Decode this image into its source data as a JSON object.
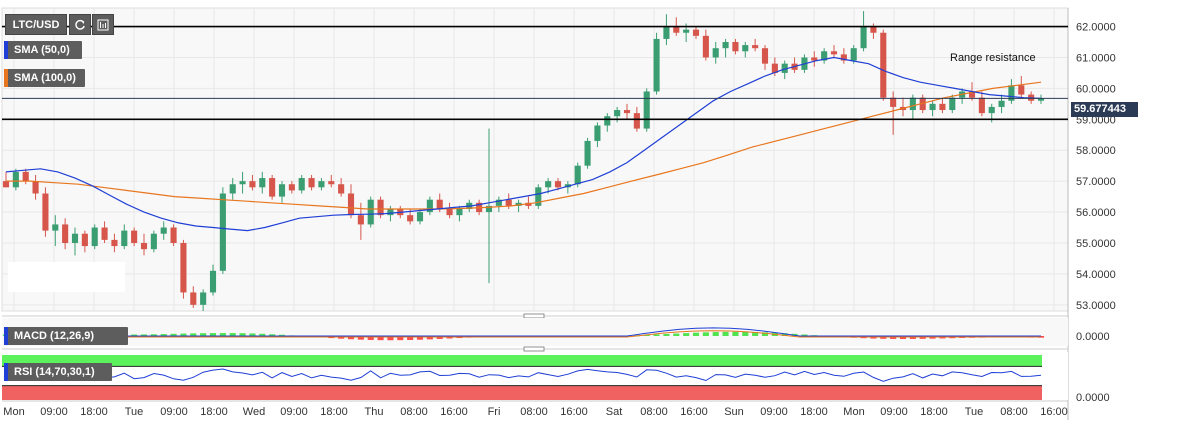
{
  "toolbar": {
    "symbol": "LTC/USD",
    "refresh_icon": "refresh-icon",
    "chart_icon": "chart-type-icon"
  },
  "indicators": {
    "sma50": "SMA (50,0)",
    "sma100": "SMA (100,0)",
    "macd": "MACD (12,26,9)",
    "rsi": "RSI (14,70,30,1)"
  },
  "annotation": "Range resistance",
  "current_price": "59.677443",
  "colors": {
    "up": "#3b9e72",
    "down": "#d6564b",
    "sma50": "#1f3fd6",
    "sma100": "#e8761e",
    "flag": "#2b3a55",
    "macd_green": "#32e132",
    "macd_red": "#ff2b2b",
    "rsi_over": "#5cf25c",
    "rsi_under": "#f06262",
    "rsi_line": "#1f3fd6"
  },
  "chart_data": {
    "type": "candlestick",
    "price_axis_ticks": [
      "62.0000",
      "61.0000",
      "60.0000",
      "59.0000",
      "58.0000",
      "57.0000",
      "56.0000",
      "55.0000",
      "54.0000",
      "53.0000"
    ],
    "ylim": [
      52.8,
      62.6
    ],
    "horizontal_levels": [
      62.0,
      59.0
    ],
    "current_price": 59.677443,
    "time_labels": [
      "Mon",
      "09:00",
      "18:00",
      "Tue",
      "09:00",
      "18:00",
      "Wed",
      "09:00",
      "18:00",
      "Thu",
      "08:00",
      "16:00",
      "Fri",
      "08:00",
      "16:00",
      "Sat",
      "08:00",
      "16:00",
      "Sun",
      "09:00",
      "18:00",
      "Mon",
      "09:00",
      "18:00",
      "Tue",
      "08:00",
      "16:00"
    ],
    "macd_tick": "0.0000",
    "rsi_tick": "0.0000",
    "candles": [
      [
        57.0,
        57.3,
        56.8,
        56.8
      ],
      [
        56.8,
        57.4,
        56.7,
        57.3
      ],
      [
        57.3,
        57.4,
        56.9,
        57.0
      ],
      [
        57.0,
        57.2,
        56.4,
        56.6
      ],
      [
        56.6,
        56.8,
        55.2,
        55.4
      ],
      [
        55.4,
        55.9,
        54.9,
        55.6
      ],
      [
        55.6,
        55.8,
        54.8,
        55.0
      ],
      [
        55.0,
        55.5,
        54.6,
        55.3
      ],
      [
        55.3,
        55.4,
        54.7,
        54.9
      ],
      [
        54.9,
        55.6,
        54.8,
        55.5
      ],
      [
        55.5,
        55.7,
        55.0,
        55.1
      ],
      [
        55.1,
        55.3,
        54.7,
        54.9
      ],
      [
        54.9,
        55.6,
        54.8,
        55.4
      ],
      [
        55.4,
        55.5,
        54.9,
        55.0
      ],
      [
        55.0,
        55.3,
        54.6,
        54.8
      ],
      [
        54.8,
        55.4,
        54.7,
        55.3
      ],
      [
        55.3,
        55.7,
        55.1,
        55.5
      ],
      [
        55.5,
        55.6,
        54.9,
        55.0
      ],
      [
        55.0,
        55.1,
        53.2,
        53.4
      ],
      [
        53.4,
        53.6,
        52.9,
        53.0
      ],
      [
        53.0,
        53.5,
        52.8,
        53.4
      ],
      [
        53.4,
        54.3,
        53.3,
        54.1
      ],
      [
        54.1,
        56.8,
        54.0,
        56.6
      ],
      [
        56.6,
        57.1,
        56.4,
        56.9
      ],
      [
        56.9,
        57.3,
        56.6,
        57.0
      ],
      [
        57.0,
        57.2,
        56.7,
        56.8
      ],
      [
        56.8,
        57.3,
        56.6,
        57.1
      ],
      [
        57.1,
        57.2,
        56.4,
        56.5
      ],
      [
        56.5,
        57.0,
        56.3,
        56.9
      ],
      [
        56.9,
        57.0,
        56.6,
        56.7
      ],
      [
        56.7,
        57.2,
        56.6,
        57.1
      ],
      [
        57.1,
        57.2,
        56.7,
        56.8
      ],
      [
        56.8,
        57.1,
        56.7,
        57.0
      ],
      [
        57.0,
        57.2,
        56.8,
        56.9
      ],
      [
        56.9,
        57.1,
        56.5,
        56.6
      ],
      [
        56.6,
        56.9,
        55.8,
        55.9
      ],
      [
        55.9,
        56.3,
        55.1,
        55.6
      ],
      [
        55.6,
        56.5,
        55.5,
        56.4
      ],
      [
        56.4,
        56.5,
        55.8,
        55.9
      ],
      [
        55.9,
        56.2,
        55.7,
        56.1
      ],
      [
        56.1,
        56.2,
        55.8,
        55.9
      ],
      [
        55.9,
        56.1,
        55.6,
        55.7
      ],
      [
        55.7,
        56.1,
        55.6,
        56.0
      ],
      [
        56.0,
        56.5,
        55.9,
        56.4
      ],
      [
        56.4,
        56.6,
        56.0,
        56.1
      ],
      [
        56.1,
        56.3,
        55.8,
        55.9
      ],
      [
        55.9,
        56.2,
        55.7,
        56.1
      ],
      [
        56.1,
        56.4,
        56.0,
        56.3
      ],
      [
        56.3,
        56.4,
        55.9,
        56.0
      ],
      [
        56.0,
        58.7,
        53.7,
        56.2
      ],
      [
        56.2,
        56.5,
        56.0,
        56.4
      ],
      [
        56.4,
        56.6,
        56.1,
        56.2
      ],
      [
        56.2,
        56.4,
        56.0,
        56.3
      ],
      [
        56.3,
        56.5,
        56.1,
        56.2
      ],
      [
        56.2,
        56.9,
        56.1,
        56.8
      ],
      [
        56.8,
        57.1,
        56.6,
        57.0
      ],
      [
        57.0,
        57.1,
        56.7,
        56.8
      ],
      [
        56.8,
        57.0,
        56.6,
        56.9
      ],
      [
        56.9,
        57.6,
        56.8,
        57.5
      ],
      [
        57.5,
        58.4,
        57.4,
        58.3
      ],
      [
        58.3,
        58.9,
        58.1,
        58.8
      ],
      [
        58.8,
        59.2,
        58.6,
        59.1
      ],
      [
        59.1,
        59.4,
        58.9,
        59.3
      ],
      [
        59.3,
        59.5,
        59.0,
        59.2
      ],
      [
        59.2,
        59.4,
        58.6,
        58.7
      ],
      [
        58.7,
        60.0,
        58.6,
        59.9
      ],
      [
        59.9,
        61.8,
        59.8,
        61.6
      ],
      [
        61.6,
        62.4,
        61.4,
        62.0
      ],
      [
        62.0,
        62.3,
        61.7,
        61.8
      ],
      [
        61.8,
        62.1,
        61.5,
        61.9
      ],
      [
        61.9,
        62.0,
        61.6,
        61.7
      ],
      [
        61.7,
        61.9,
        60.9,
        61.0
      ],
      [
        61.0,
        61.5,
        60.8,
        61.3
      ],
      [
        61.3,
        61.6,
        61.0,
        61.5
      ],
      [
        61.5,
        61.6,
        61.1,
        61.2
      ],
      [
        61.2,
        61.5,
        61.0,
        61.4
      ],
      [
        61.4,
        61.6,
        61.2,
        61.3
      ],
      [
        61.3,
        61.4,
        60.6,
        60.8
      ],
      [
        60.8,
        61.0,
        60.4,
        60.5
      ],
      [
        60.5,
        60.9,
        60.3,
        60.8
      ],
      [
        60.8,
        61.0,
        60.5,
        60.6
      ],
      [
        60.6,
        61.1,
        60.5,
        61.0
      ],
      [
        61.0,
        61.2,
        60.7,
        60.9
      ],
      [
        60.9,
        61.3,
        60.8,
        61.2
      ],
      [
        61.2,
        61.4,
        61.0,
        61.1
      ],
      [
        61.1,
        61.3,
        60.8,
        60.9
      ],
      [
        60.9,
        61.4,
        60.8,
        61.3
      ],
      [
        61.3,
        62.5,
        61.2,
        62.0
      ],
      [
        62.0,
        62.1,
        61.6,
        61.8
      ],
      [
        61.8,
        61.9,
        59.6,
        59.7
      ],
      [
        59.7,
        59.9,
        58.5,
        59.4
      ],
      [
        59.4,
        59.7,
        59.1,
        59.3
      ],
      [
        59.3,
        59.8,
        59.0,
        59.7
      ],
      [
        59.7,
        59.8,
        59.2,
        59.3
      ],
      [
        59.3,
        59.6,
        59.1,
        59.5
      ],
      [
        59.5,
        59.7,
        59.2,
        59.3
      ],
      [
        59.3,
        59.8,
        59.2,
        59.7
      ],
      [
        59.7,
        60.0,
        59.5,
        59.9
      ],
      [
        59.9,
        60.2,
        59.6,
        59.7
      ],
      [
        59.7,
        59.9,
        59.1,
        59.2
      ],
      [
        59.2,
        59.5,
        58.9,
        59.4
      ],
      [
        59.4,
        59.8,
        59.2,
        59.6
      ],
      [
        59.6,
        60.3,
        59.5,
        60.1
      ],
      [
        60.1,
        60.4,
        59.7,
        59.8
      ],
      [
        59.8,
        59.9,
        59.5,
        59.6
      ],
      [
        59.6,
        59.8,
        59.5,
        59.68
      ]
    ],
    "sma50": [
      57.3,
      57.35,
      57.4,
      57.3,
      57.1,
      56.85,
      56.55,
      56.25,
      56.0,
      55.8,
      55.65,
      55.55,
      55.5,
      55.45,
      55.4,
      55.5,
      55.65,
      55.8,
      55.85,
      55.9,
      55.92,
      55.93,
      55.95,
      56.0,
      56.05,
      56.1,
      56.15,
      56.2,
      56.3,
      56.4,
      56.5,
      56.6,
      56.75,
      56.9,
      57.05,
      57.3,
      57.6,
      58.0,
      58.4,
      58.8,
      59.2,
      59.6,
      59.9,
      60.15,
      60.4,
      60.6,
      60.75,
      60.9,
      61.0,
      60.9,
      60.8,
      60.55,
      60.35,
      60.2,
      60.1,
      60.0,
      59.9,
      59.8,
      59.75,
      59.7,
      59.68
    ],
    "sma100": [
      57.0,
      57.0,
      56.95,
      56.9,
      56.8,
      56.7,
      56.6,
      56.5,
      56.45,
      56.4,
      56.35,
      56.3,
      56.25,
      56.2,
      56.15,
      56.1,
      56.1,
      56.1,
      56.1,
      56.12,
      56.15,
      56.2,
      56.3,
      56.45,
      56.6,
      56.8,
      57.0,
      57.2,
      57.4,
      57.6,
      57.85,
      58.1,
      58.3,
      58.5,
      58.7,
      58.9,
      59.1,
      59.3,
      59.5,
      59.7,
      59.85,
      60.0,
      60.1,
      60.2
    ],
    "rsi_range": [
      0,
      100
    ],
    "rsi_levels": [
      70,
      30
    ]
  }
}
